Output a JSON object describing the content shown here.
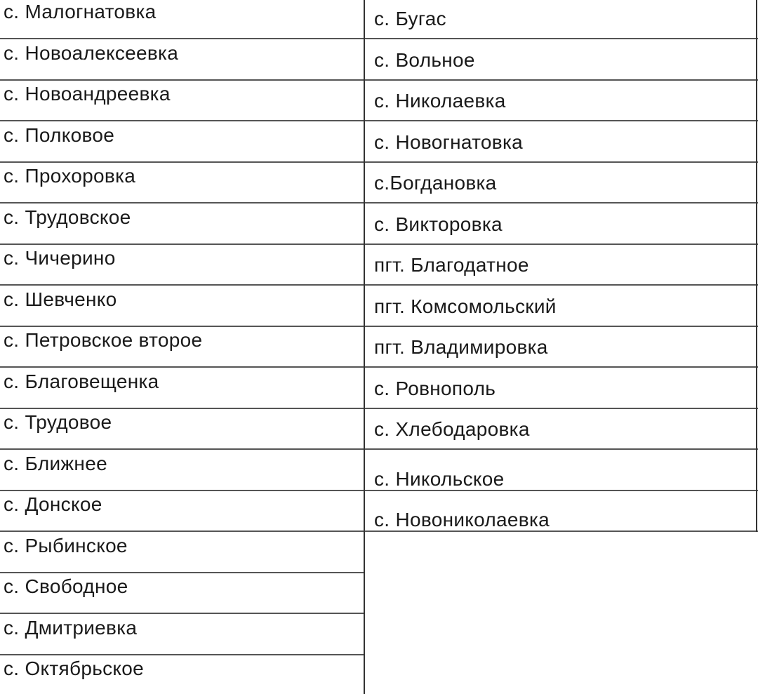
{
  "table": {
    "left_column": [
      "с. Малогнатовка",
      "с. Новоалексеевка",
      "с. Новоандреевка",
      "с. Полковое",
      "с. Прохоровка",
      "с. Трудовское",
      "с. Чичерино",
      "с. Шевченко",
      "с. Петровское второе",
      "с. Благовещенка",
      "с. Трудовое",
      "с. Ближнее",
      "с. Донское",
      "с. Рыбинское",
      "с. Свободное",
      "с. Дмитриевка",
      "с. Октябрьское"
    ],
    "right_column": [
      "с. Бугас",
      "с. Вольное",
      "с. Николаевка",
      "с. Новогнатовка",
      "с.Богдановка",
      "с. Викторовка",
      "пгт. Благодатное",
      "пгт. Комсомольский",
      "пгт. Владимировка",
      "с. Ровнополь",
      "с. Хлебодаровка",
      "с. Никольское",
      "с. Новониколаевка"
    ]
  }
}
